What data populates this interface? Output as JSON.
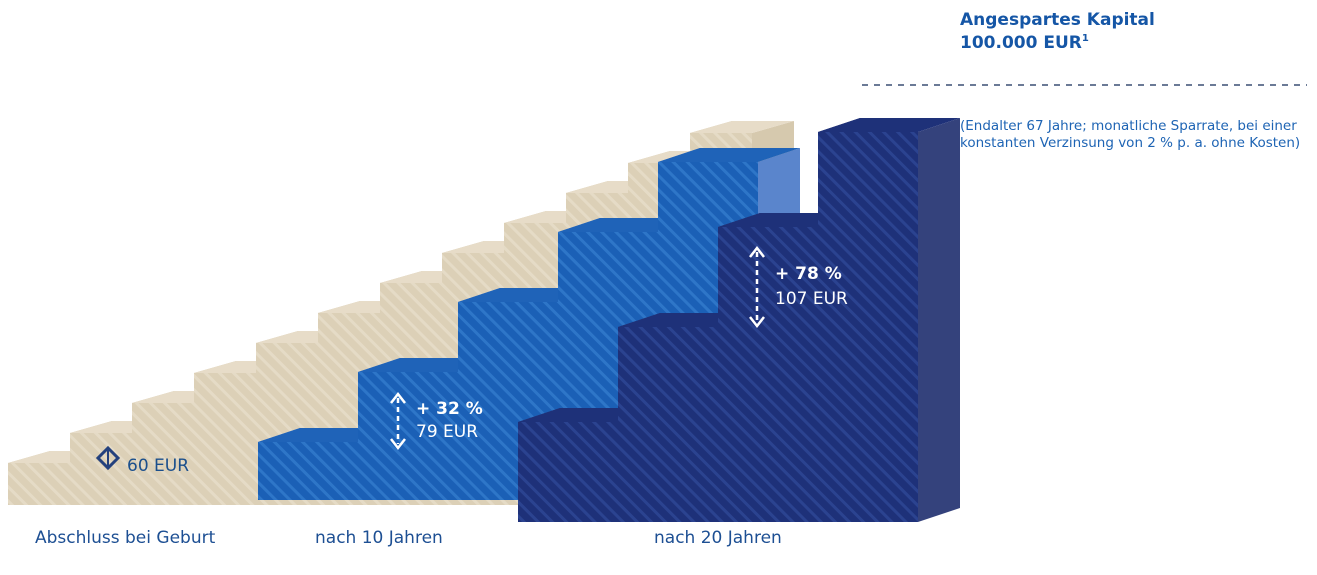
{
  "header": {
    "title": "Angespartes Kapital",
    "amount": "100.000 EUR",
    "footnote_marker": "1",
    "note": "(Endalter 67 Jahre; monatliche Sparrate, bei einer konstanten Verzinsung von 2 % p. a. ohne Kosten)"
  },
  "scenarios": [
    {
      "caption": "Abschluss bei Geburt",
      "increase": "",
      "rate": "60 EUR",
      "color": "#e3d8c2"
    },
    {
      "caption": "nach 10 Jahren",
      "increase": "+ 32 %",
      "rate": "79 EUR",
      "color": "#1c5fb5"
    },
    {
      "caption": "nach 20 Jahren",
      "increase": "+ 78 %",
      "rate": "107 EUR",
      "color": "#1e3179"
    }
  ]
}
